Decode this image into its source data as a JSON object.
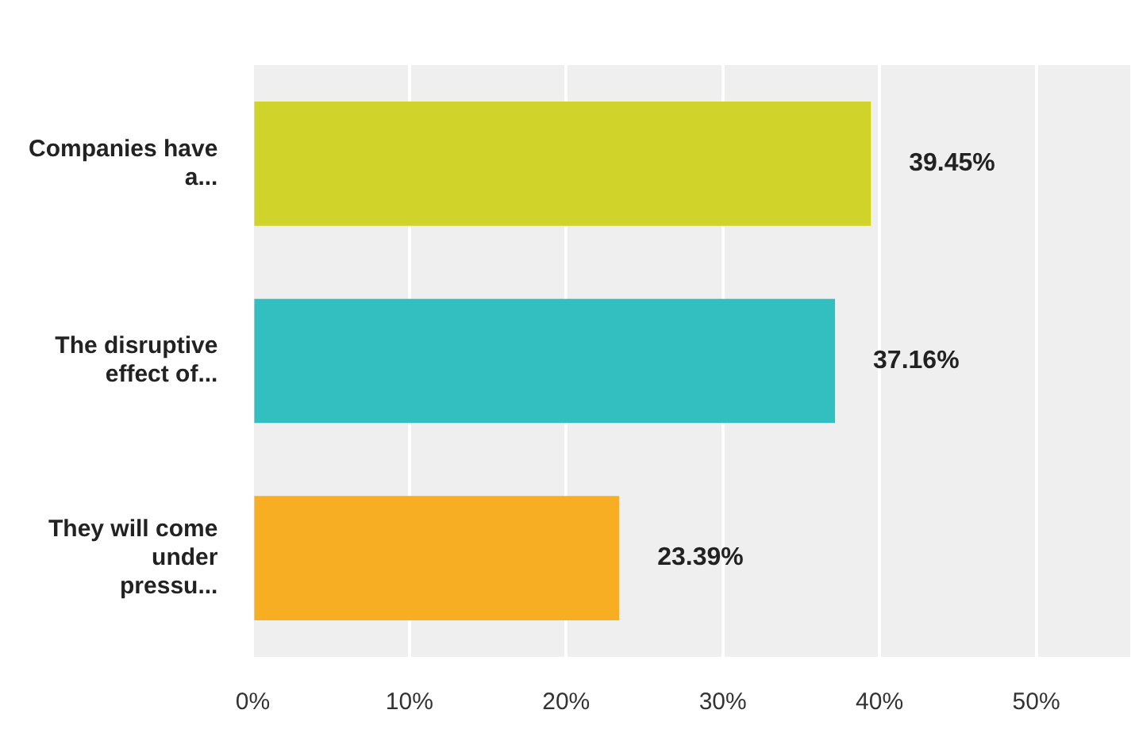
{
  "chart_data": {
    "type": "bar",
    "orientation": "horizontal",
    "categories": [
      "Companies have a...",
      "The disruptive effect of...",
      "They will come under pressu..."
    ],
    "values": [
      39.45,
      37.16,
      23.39
    ],
    "colors": [
      "#d0d42a",
      "#33bfc0",
      "#f7ae22"
    ],
    "value_labels": [
      "39.45%",
      "37.16%",
      "23.39%"
    ],
    "xlim": [
      0,
      56
    ],
    "xticks": [
      {
        "value": 0,
        "label": "0%"
      },
      {
        "value": 10,
        "label": "10%"
      },
      {
        "value": 20,
        "label": "20%"
      },
      {
        "value": 30,
        "label": "30%"
      },
      {
        "value": 40,
        "label": "40%"
      },
      {
        "value": 50,
        "label": "50%"
      }
    ],
    "grid": "x",
    "legend": false
  }
}
